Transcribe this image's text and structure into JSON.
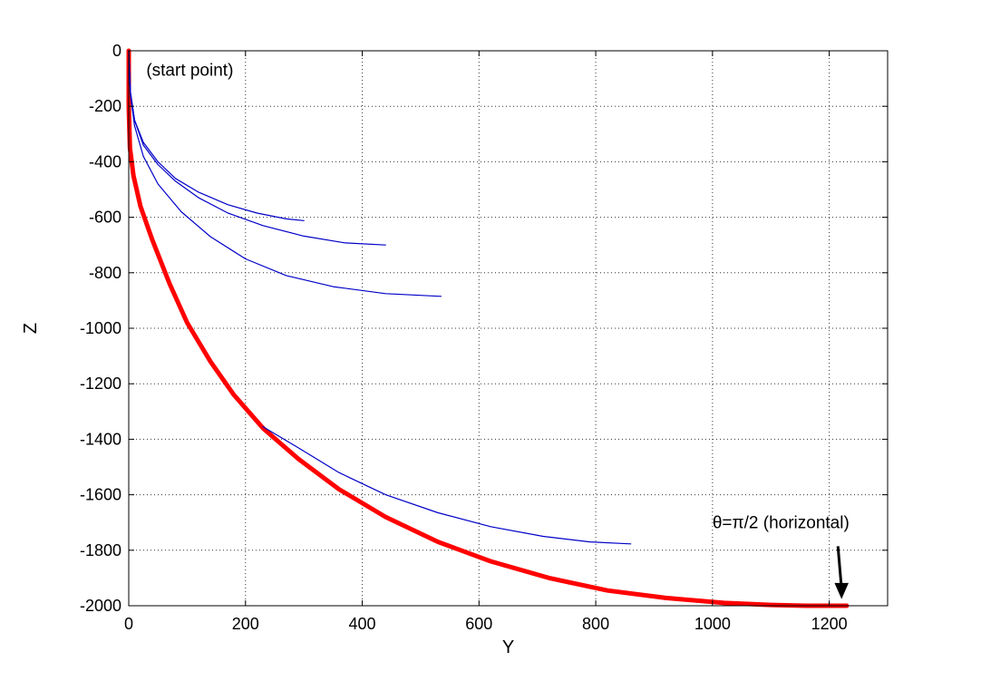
{
  "chart_data": {
    "type": "line",
    "title": "",
    "xlabel": "Y",
    "ylabel": "Z",
    "xlim": [
      0,
      1300
    ],
    "ylim": [
      -2000,
      0
    ],
    "xticks": [
      0,
      200,
      400,
      600,
      800,
      1000,
      1200
    ],
    "yticks": [
      0,
      -200,
      -400,
      -600,
      -800,
      -1000,
      -1200,
      -1400,
      -1600,
      -1800,
      -2000
    ],
    "grid": true,
    "annotations": [
      {
        "text": "(start point)",
        "x": 30,
        "y": -90
      },
      {
        "text": "θ=π/2 (horizontal)",
        "x": 1000,
        "y": -1720,
        "arrow_to": [
          1218,
          -1985
        ]
      }
    ],
    "series": [
      {
        "color": "#ff0000",
        "points": [
          [
            0,
            0
          ],
          [
            0,
            -200
          ],
          [
            2,
            -350
          ],
          [
            8,
            -450
          ],
          [
            20,
            -560
          ],
          [
            40,
            -680
          ],
          [
            70,
            -840
          ],
          [
            100,
            -980
          ],
          [
            140,
            -1120
          ],
          [
            180,
            -1240
          ],
          [
            230,
            -1360
          ],
          [
            290,
            -1470
          ],
          [
            360,
            -1580
          ],
          [
            440,
            -1680
          ],
          [
            530,
            -1770
          ],
          [
            620,
            -1840
          ],
          [
            720,
            -1900
          ],
          [
            820,
            -1945
          ],
          [
            920,
            -1972
          ],
          [
            1020,
            -1990
          ],
          [
            1100,
            -1997
          ],
          [
            1160,
            -2000
          ],
          [
            1230,
            -2000
          ]
        ]
      },
      {
        "color": "#0000c8",
        "points": [
          [
            0,
            0
          ],
          [
            3,
            -150
          ],
          [
            10,
            -250
          ],
          [
            25,
            -330
          ],
          [
            50,
            -400
          ],
          [
            80,
            -460
          ],
          [
            120,
            -510
          ],
          [
            170,
            -555
          ],
          [
            220,
            -585
          ],
          [
            270,
            -606
          ],
          [
            300,
            -612
          ]
        ]
      },
      {
        "color": "#0000c8",
        "points": [
          [
            0,
            0
          ],
          [
            3,
            -150
          ],
          [
            10,
            -250
          ],
          [
            25,
            -340
          ],
          [
            50,
            -410
          ],
          [
            80,
            -470
          ],
          [
            120,
            -530
          ],
          [
            170,
            -585
          ],
          [
            230,
            -630
          ],
          [
            300,
            -668
          ],
          [
            370,
            -692
          ],
          [
            440,
            -700
          ]
        ]
      },
      {
        "color": "#0000c8",
        "points": [
          [
            0,
            0
          ],
          [
            3,
            -160
          ],
          [
            10,
            -270
          ],
          [
            25,
            -380
          ],
          [
            50,
            -480
          ],
          [
            90,
            -580
          ],
          [
            140,
            -670
          ],
          [
            200,
            -750
          ],
          [
            270,
            -810
          ],
          [
            350,
            -850
          ],
          [
            440,
            -875
          ],
          [
            535,
            -885
          ]
        ]
      },
      {
        "color": "#0000c8",
        "points": [
          [
            230,
            -1355
          ],
          [
            290,
            -1430
          ],
          [
            360,
            -1520
          ],
          [
            440,
            -1600
          ],
          [
            530,
            -1665
          ],
          [
            620,
            -1715
          ],
          [
            710,
            -1750
          ],
          [
            790,
            -1770
          ],
          [
            860,
            -1777
          ]
        ]
      }
    ]
  }
}
